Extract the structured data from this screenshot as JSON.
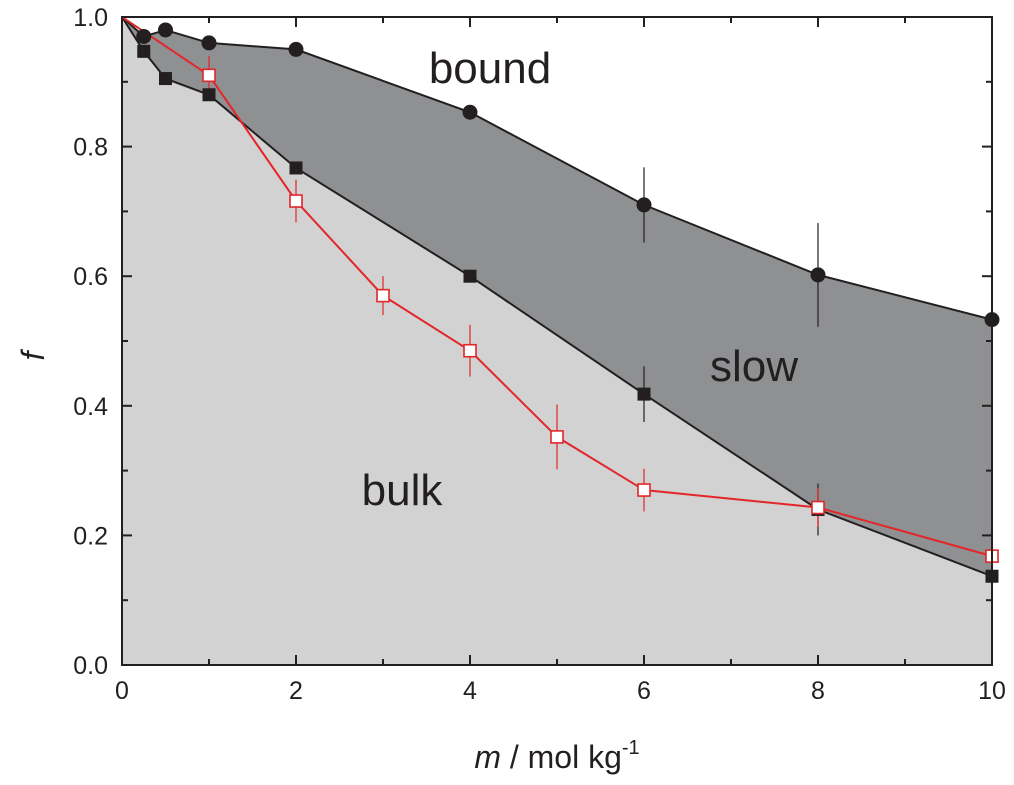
{
  "chart_data": {
    "type": "line",
    "xlabel": {
      "var": "m",
      "text": " / mol kg",
      "sup": "-1"
    },
    "ylabel": "f",
    "xlim": [
      0,
      10
    ],
    "ylim": [
      0,
      1.0
    ],
    "x_ticks": [
      "0",
      "2",
      "4",
      "6",
      "8",
      "10"
    ],
    "y_ticks": [
      "0.0",
      "0.2",
      "0.4",
      "0.6",
      "0.8",
      "1.0"
    ],
    "grid": false,
    "region_labels": {
      "bound": "bound",
      "slow": "slow",
      "bulk": "bulk"
    },
    "colors": {
      "bulk_fill": "#d2d2d2",
      "slow_fill": "#8f9092",
      "bound_fill": "#ffffff",
      "black_series": "#231f20",
      "red_series": "#e2262a"
    },
    "series": [
      {
        "marker": "circle",
        "x": [
          0,
          0.25,
          0.5,
          1,
          2,
          4,
          6,
          8,
          10
        ],
        "y": [
          1.0,
          0.97,
          0.98,
          0.96,
          0.95,
          0.853,
          0.71,
          0.602,
          0.533
        ],
        "err": [
          0,
          0,
          0,
          0,
          0,
          0,
          0.058,
          0.08,
          0.025
        ]
      },
      {
        "marker": "square",
        "x": [
          0,
          0.25,
          0.5,
          1,
          2,
          4,
          6,
          8,
          10
        ],
        "y": [
          1.0,
          0.947,
          0.905,
          0.88,
          0.767,
          0.6,
          0.418,
          0.24,
          0.137
        ],
        "err": [
          0,
          0,
          0,
          0,
          0,
          0,
          0.043,
          0.04,
          0.02
        ]
      },
      {
        "marker": "open-square",
        "x": [
          0,
          1,
          2,
          3,
          4,
          5,
          6,
          8,
          10
        ],
        "y": [
          1.0,
          0.91,
          0.716,
          0.57,
          0.485,
          0.352,
          0.27,
          0.243,
          0.168
        ],
        "err": [
          0,
          0.03,
          0.033,
          0.03,
          0.04,
          0.05,
          0.033,
          0.03,
          0.06
        ]
      }
    ]
  }
}
